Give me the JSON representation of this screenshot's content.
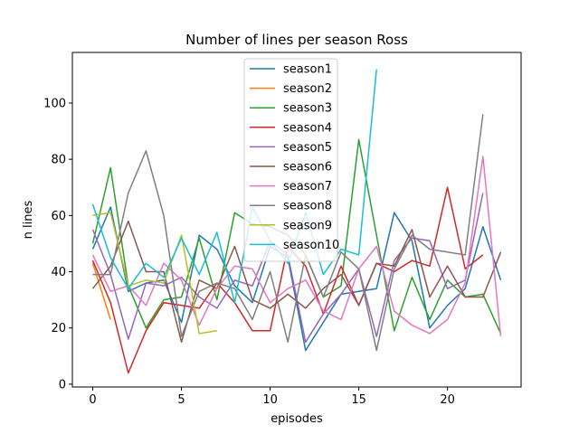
{
  "chart_data": {
    "type": "line",
    "title": "Number of lines per season Ross",
    "xlabel": "episodes",
    "ylabel": "n lines",
    "xlim": [
      -1.15,
      24.15
    ],
    "ylim": [
      -1,
      118
    ],
    "xticks": [
      0,
      5,
      10,
      15,
      20
    ],
    "yticks": [
      0,
      20,
      40,
      60,
      80,
      100
    ],
    "grid": false,
    "legend": "top-center",
    "series": [
      {
        "name": "season1",
        "color": "#1f77b4",
        "values": [
          48,
          63,
          33,
          36,
          37,
          22,
          53,
          48,
          35,
          29,
          49,
          45,
          12,
          22,
          32,
          33,
          34,
          61,
          51,
          20,
          28,
          34,
          56,
          37
        ]
      },
      {
        "name": "season2",
        "color": "#ff7f0e",
        "values": [
          43,
          23
        ]
      },
      {
        "name": "season3",
        "color": "#2ca02c",
        "values": [
          50,
          77,
          35,
          20,
          30,
          31,
          52,
          30,
          61,
          57,
          56,
          53,
          46,
          31,
          35,
          87,
          53,
          19,
          38,
          23,
          37,
          31,
          32,
          18
        ]
      },
      {
        "name": "season4",
        "color": "#d62728",
        "values": [
          44,
          29,
          4,
          19,
          29,
          28,
          27,
          36,
          29,
          19,
          19,
          49,
          42,
          25,
          42,
          28,
          43,
          40,
          44,
          42,
          70,
          41,
          46
        ]
      },
      {
        "name": "season5",
        "color": "#9467bd",
        "values": [
          55,
          39,
          16,
          36,
          35,
          38,
          31,
          27,
          37,
          35,
          51,
          46,
          15,
          25,
          32,
          41,
          17,
          44,
          52,
          51,
          34,
          37,
          68
        ]
      },
      {
        "name": "season6",
        "color": "#8c564b",
        "values": [
          34,
          42,
          58,
          40,
          40,
          15,
          37,
          34,
          49,
          30,
          27,
          32,
          27,
          34,
          39,
          28,
          43,
          42,
          55,
          31,
          42,
          31,
          31,
          47
        ]
      },
      {
        "name": "season7",
        "color": "#e377c2",
        "values": [
          46,
          33,
          35,
          28,
          43,
          37,
          21,
          34,
          42,
          41,
          29,
          34,
          37,
          26,
          23,
          41,
          49,
          26,
          21,
          18,
          23,
          36,
          81,
          17
        ]
      },
      {
        "name": "season8",
        "color": "#7f7f7f",
        "values": [
          39,
          39,
          68,
          83,
          60,
          17,
          33,
          36,
          34,
          23,
          40,
          15,
          46,
          31,
          47,
          41,
          12,
          41,
          53,
          48,
          47,
          46,
          96
        ]
      },
      {
        "name": "season9",
        "color": "#bcbd22",
        "values": [
          60,
          61,
          35,
          37,
          36,
          53,
          18,
          19
        ]
      },
      {
        "name": "season10",
        "color": "#17becf",
        "values": [
          64,
          45,
          34,
          43,
          38,
          52,
          39,
          54,
          29,
          63,
          51,
          43,
          61,
          39,
          48,
          46,
          112
        ]
      }
    ]
  }
}
